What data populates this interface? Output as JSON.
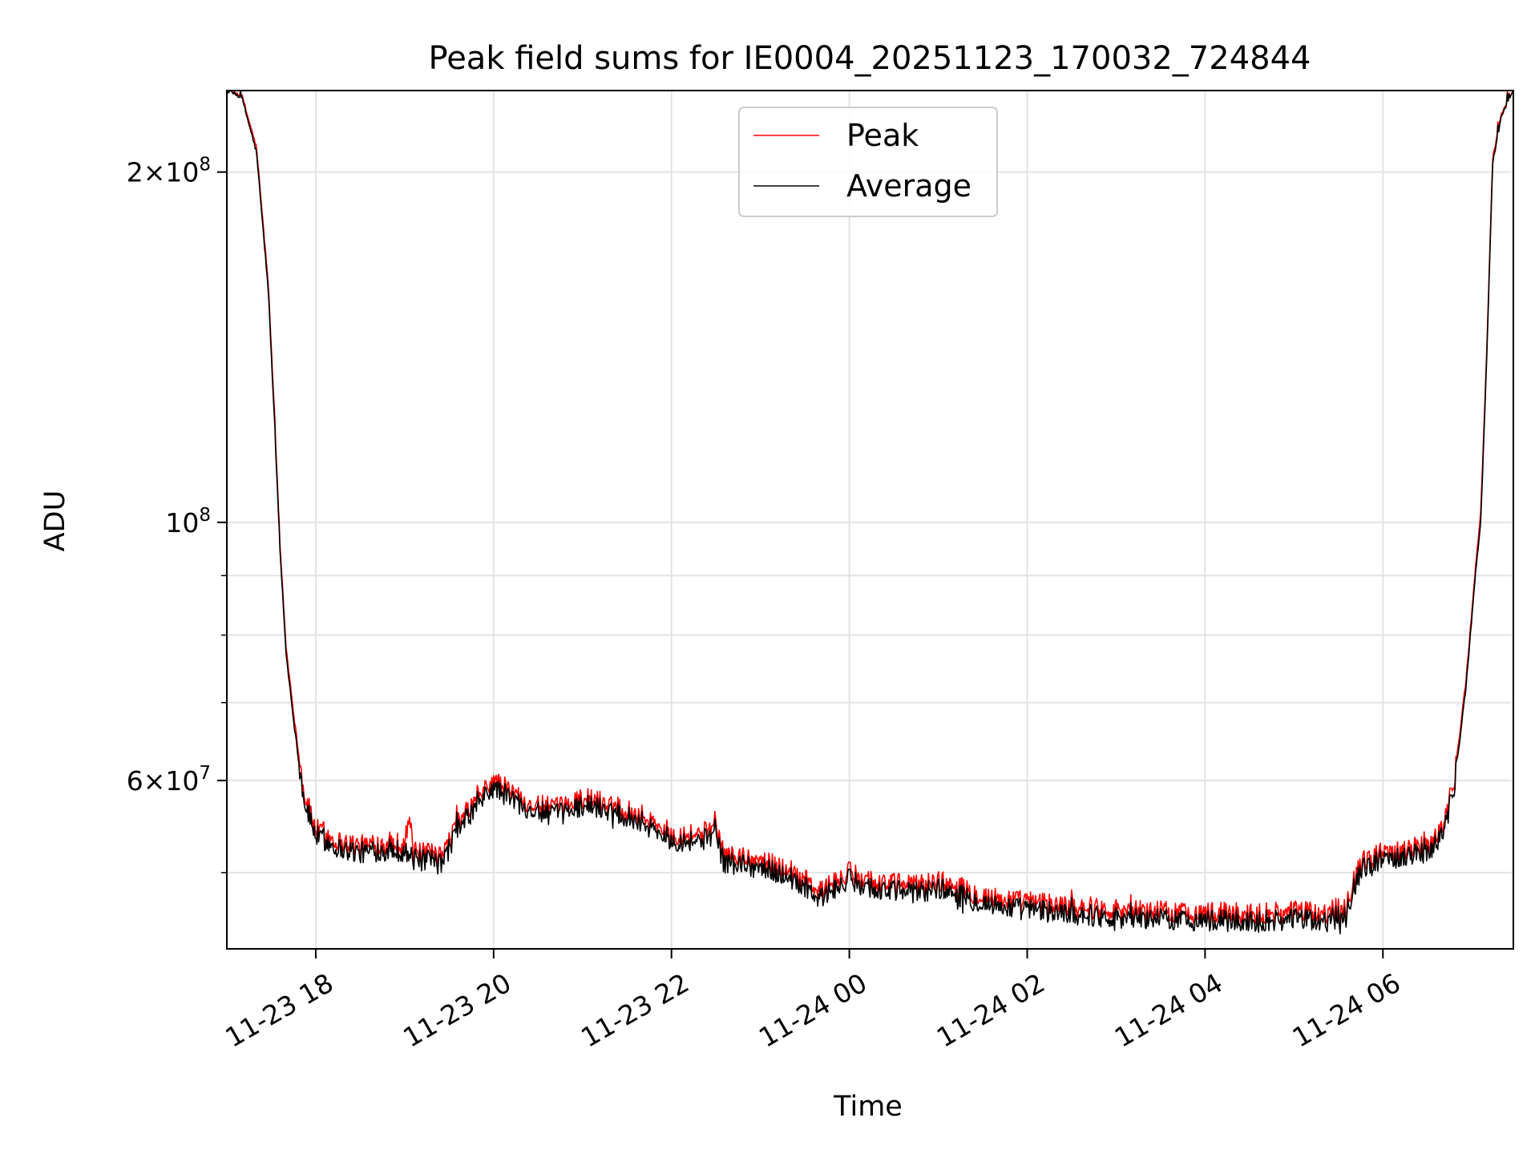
{
  "chart_data": {
    "type": "line",
    "title": "Peak field sums for IE0004_20251123_170032_724844",
    "xlabel": "Time",
    "ylabel": "ADU",
    "yscale": "log",
    "ylim": [
      43000000,
      235000000
    ],
    "xlim": [
      "11-23 17:00",
      "11-24 07:28"
    ],
    "grid": true,
    "legend_position": "top-center",
    "x_ticks": [
      "11-23 18",
      "11-23 20",
      "11-23 22",
      "11-24 00",
      "11-24 02",
      "11-24 04",
      "11-24 06"
    ],
    "y_tick_labels": [
      {
        "value": 200000000,
        "base": "2",
        "mult": "×",
        "exp_base": "10",
        "exp": "8"
      },
      {
        "value": 100000000,
        "base": "",
        "mult": "",
        "exp_base": "10",
        "exp": "8"
      },
      {
        "value": 60000000,
        "base": "6",
        "mult": "×",
        "exp_base": "10",
        "exp": "7"
      }
    ],
    "series": [
      {
        "name": "Peak",
        "color": "#ff0000",
        "points": [
          [
            "11-23 17:00",
            235000000
          ],
          [
            "11-23 17:10",
            233000000
          ],
          [
            "11-23 17:20",
            210000000
          ],
          [
            "11-23 17:28",
            160000000
          ],
          [
            "11-23 17:32",
            125000000
          ],
          [
            "11-23 17:36",
            95000000
          ],
          [
            "11-23 17:40",
            78000000
          ],
          [
            "11-23 17:46",
            67000000
          ],
          [
            "11-23 17:52",
            58500000
          ],
          [
            "11-23 18:00",
            54500000
          ],
          [
            "11-23 18:15",
            53200000
          ],
          [
            "11-23 18:30",
            52700000
          ],
          [
            "11-23 18:45",
            53000000
          ],
          [
            "11-23 19:00",
            53000000
          ],
          [
            "11-23 19:03",
            56000000
          ],
          [
            "11-23 19:06",
            52000000
          ],
          [
            "11-23 19:20",
            51800000
          ],
          [
            "11-23 19:25",
            51500000
          ],
          [
            "11-23 19:35",
            55000000
          ],
          [
            "11-23 19:50",
            58000000
          ],
          [
            "11-23 20:00",
            60000000
          ],
          [
            "11-23 20:15",
            58300000
          ],
          [
            "11-23 20:30",
            57000000
          ],
          [
            "11-23 20:45",
            56800000
          ],
          [
            "11-23 21:00",
            58000000
          ],
          [
            "11-23 21:20",
            57300000
          ],
          [
            "11-23 21:40",
            56000000
          ],
          [
            "11-23 22:00",
            54000000
          ],
          [
            "11-23 22:20",
            54000000
          ],
          [
            "11-23 22:30",
            54800000
          ],
          [
            "11-23 22:35",
            51800000
          ],
          [
            "11-23 23:00",
            51200000
          ],
          [
            "11-23 23:20",
            50300000
          ],
          [
            "11-23 23:40",
            48200000
          ],
          [
            "11-24 00:00",
            50000000
          ],
          [
            "11-24 00:20",
            49000000
          ],
          [
            "11-24 00:45",
            48800000
          ],
          [
            "11-24 01:00",
            49200000
          ],
          [
            "11-24 01:20",
            48200000
          ],
          [
            "11-24 01:40",
            47500000
          ],
          [
            "11-24 02:00",
            47200000
          ],
          [
            "11-24 02:30",
            46800000
          ],
          [
            "11-24 03:00",
            46500000
          ],
          [
            "11-24 03:30",
            46300000
          ],
          [
            "11-24 04:00",
            46200000
          ],
          [
            "11-24 04:20",
            46100000
          ],
          [
            "11-24 04:40",
            46100000
          ],
          [
            "11-24 05:00",
            46400000
          ],
          [
            "11-24 05:20",
            46000000
          ],
          [
            "11-24 05:35",
            47100000
          ],
          [
            "11-24 05:45",
            51000000
          ],
          [
            "11-24 06:00",
            52000000
          ],
          [
            "11-24 06:15",
            52500000
          ],
          [
            "11-24 06:30",
            52800000
          ],
          [
            "11-24 06:40",
            54500000
          ],
          [
            "11-24 06:48",
            60000000
          ],
          [
            "11-24 06:56",
            73000000
          ],
          [
            "11-24 07:02",
            90000000
          ],
          [
            "11-24 07:06",
            102000000
          ],
          [
            "11-24 07:10",
            140000000
          ],
          [
            "11-24 07:14",
            205000000
          ],
          [
            "11-24 07:20",
            225000000
          ],
          [
            "11-24 07:28",
            235000000
          ]
        ]
      },
      {
        "name": "Average",
        "color": "#000000",
        "points": [
          [
            "11-23 17:00",
            235000000
          ],
          [
            "11-23 17:10",
            232000000
          ],
          [
            "11-23 17:20",
            208000000
          ],
          [
            "11-23 17:28",
            158000000
          ],
          [
            "11-23 17:32",
            123000000
          ],
          [
            "11-23 17:36",
            94000000
          ],
          [
            "11-23 17:40",
            77000000
          ],
          [
            "11-23 17:46",
            66000000
          ],
          [
            "11-23 17:52",
            57700000
          ],
          [
            "11-23 18:00",
            53800000
          ],
          [
            "11-23 18:15",
            52500000
          ],
          [
            "11-23 18:30",
            52000000
          ],
          [
            "11-23 18:45",
            52300000
          ],
          [
            "11-23 19:00",
            52200000
          ],
          [
            "11-23 19:06",
            51300000
          ],
          [
            "11-23 19:20",
            51100000
          ],
          [
            "11-23 19:25",
            50800000
          ],
          [
            "11-23 19:35",
            54300000
          ],
          [
            "11-23 19:50",
            57300000
          ],
          [
            "11-23 20:00",
            59200000
          ],
          [
            "11-23 20:15",
            57600000
          ],
          [
            "11-23 20:30",
            56300000
          ],
          [
            "11-23 20:45",
            56100000
          ],
          [
            "11-23 21:00",
            57200000
          ],
          [
            "11-23 21:20",
            56600000
          ],
          [
            "11-23 21:40",
            55300000
          ],
          [
            "11-23 22:00",
            53300000
          ],
          [
            "11-23 22:20",
            53300000
          ],
          [
            "11-23 22:30",
            54000000
          ],
          [
            "11-23 22:35",
            51100000
          ],
          [
            "11-23 23:00",
            50500000
          ],
          [
            "11-23 23:20",
            49600000
          ],
          [
            "11-23 23:40",
            47500000
          ],
          [
            "11-24 00:00",
            49300000
          ],
          [
            "11-24 00:20",
            48300000
          ],
          [
            "11-24 00:45",
            48100000
          ],
          [
            "11-24 01:00",
            48500000
          ],
          [
            "11-24 01:20",
            47500000
          ],
          [
            "11-24 01:40",
            46800000
          ],
          [
            "11-24 02:00",
            46500000
          ],
          [
            "11-24 02:30",
            46100000
          ],
          [
            "11-24 03:00",
            45800000
          ],
          [
            "11-24 03:30",
            45600000
          ],
          [
            "11-24 04:00",
            45500000
          ],
          [
            "11-24 04:20",
            45400000
          ],
          [
            "11-24 04:40",
            45400000
          ],
          [
            "11-24 05:00",
            45700000
          ],
          [
            "11-24 05:20",
            45300000
          ],
          [
            "11-24 05:35",
            46400000
          ],
          [
            "11-24 05:45",
            50300000
          ],
          [
            "11-24 06:00",
            51300000
          ],
          [
            "11-24 06:15",
            51800000
          ],
          [
            "11-24 06:30",
            52100000
          ],
          [
            "11-24 06:40",
            53800000
          ],
          [
            "11-24 06:48",
            59200000
          ],
          [
            "11-24 06:56",
            72000000
          ],
          [
            "11-24 07:02",
            89000000
          ],
          [
            "11-24 07:06",
            100000000
          ],
          [
            "11-24 07:10",
            138000000
          ],
          [
            "11-24 07:14",
            203000000
          ],
          [
            "11-24 07:20",
            224000000
          ],
          [
            "11-24 07:28",
            235000000
          ]
        ]
      }
    ]
  }
}
